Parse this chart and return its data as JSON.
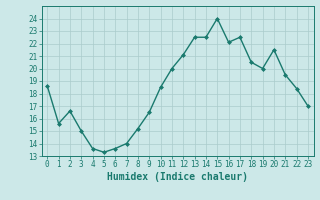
{
  "x": [
    0,
    1,
    2,
    3,
    4,
    5,
    6,
    7,
    8,
    9,
    10,
    11,
    12,
    13,
    14,
    15,
    16,
    17,
    18,
    19,
    20,
    21,
    22,
    23
  ],
  "y": [
    18.6,
    15.6,
    16.6,
    15.0,
    13.6,
    13.3,
    13.6,
    14.0,
    15.2,
    16.5,
    18.5,
    20.0,
    21.1,
    22.5,
    22.5,
    24.0,
    22.1,
    22.5,
    20.5,
    20.0,
    21.5,
    19.5,
    18.4,
    17.0
  ],
  "line_color": "#1a7a6e",
  "marker": "D",
  "marker_size": 2,
  "line_width": 1.0,
  "bg_color": "#cce8e8",
  "grid_color": "#aacccc",
  "tick_color": "#1a7a6e",
  "xlabel": "Humidex (Indice chaleur)",
  "xlabel_fontsize": 7,
  "ylim": [
    13,
    25
  ],
  "yticks": [
    13,
    14,
    15,
    16,
    17,
    18,
    19,
    20,
    21,
    22,
    23,
    24
  ],
  "xticks": [
    0,
    1,
    2,
    3,
    4,
    5,
    6,
    7,
    8,
    9,
    10,
    11,
    12,
    13,
    14,
    15,
    16,
    17,
    18,
    19,
    20,
    21,
    22,
    23
  ],
  "tick_fontsize": 5.5
}
